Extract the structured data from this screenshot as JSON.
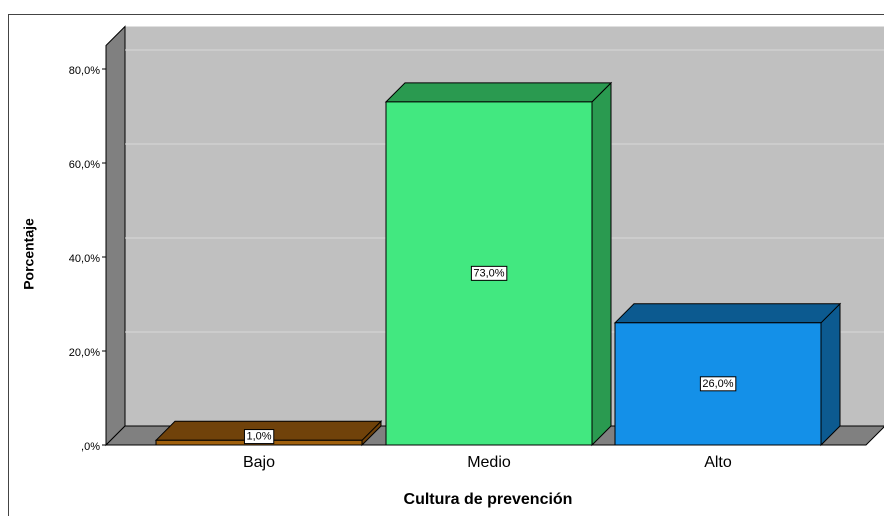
{
  "chart_data": {
    "type": "bar",
    "x_label": "Cultura de prevención",
    "y_label": "Porcentaje",
    "categories": [
      "Bajo",
      "Medio",
      "Alto"
    ],
    "values": [
      1,
      73,
      26
    ],
    "value_labels": [
      "1,0%",
      "73,0%",
      "26,0%"
    ],
    "colors": [
      "#a0600c",
      "#42e880",
      "#1490e8"
    ],
    "side_colors": [
      "#70420a",
      "#2a9a50",
      "#0c5a90"
    ],
    "ylim": [
      0,
      85
    ],
    "yticks": [
      {
        "value": 0,
        "label": ",0%"
      },
      {
        "value": 20,
        "label": "20,0%"
      },
      {
        "value": 40,
        "label": "40,0%"
      },
      {
        "value": 60,
        "label": "60,0%"
      },
      {
        "value": 80,
        "label": "80,0%"
      }
    ],
    "grid": true
  }
}
